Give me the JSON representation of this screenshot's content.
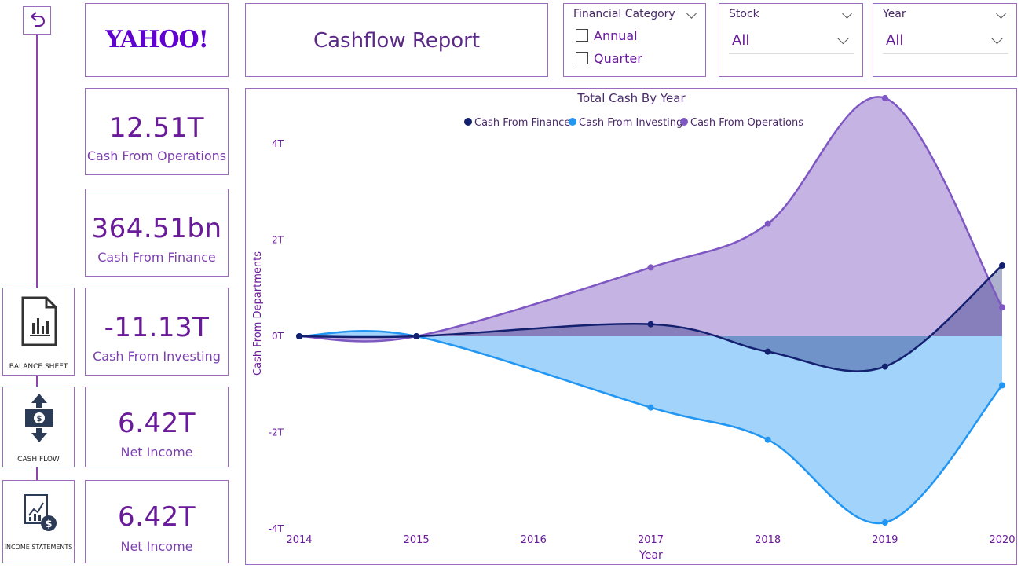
{
  "nav": {
    "back_icon": "back-arrow-icon",
    "items": [
      {
        "label": "BALANCE SHEET",
        "icon": "document-chart-icon"
      },
      {
        "label": "CASH FLOW",
        "icon": "cash-flow-arrows-icon"
      },
      {
        "label": "INCOME STATEMENTS",
        "icon": "income-statement-icon"
      }
    ]
  },
  "logo": {
    "text": "YAHOO!"
  },
  "title": "Cashflow Report",
  "slicers": {
    "financial_category": {
      "title": "Financial Category",
      "options": [
        "Annual",
        "Quarter"
      ]
    },
    "stock": {
      "title": "Stock",
      "selected": "All"
    },
    "year": {
      "title": "Year",
      "selected": "All"
    }
  },
  "kpis": [
    {
      "value": "12.51T",
      "label": "Cash From Operations"
    },
    {
      "value": "364.51bn",
      "label": "Cash From Finance"
    },
    {
      "value": "-11.13T",
      "label": "Cash From Investing"
    },
    {
      "value": "6.42T",
      "label": "Net Income"
    },
    {
      "value": "6.42T",
      "label": "Net Income"
    }
  ],
  "colors": {
    "finance": "#142070",
    "investing": "#2196f3",
    "operations": "#7e57c2",
    "accent": "#6a1b9a"
  },
  "chart_data": {
    "type": "area",
    "title": "Total Cash By Year",
    "xlabel": "Year",
    "ylabel": "Cash From Departments",
    "x": [
      2014,
      2015,
      2016,
      2017,
      2018,
      2019,
      2020
    ],
    "x_ticks": [
      "2014",
      "2015",
      "2016",
      "2017",
      "2018",
      "2019",
      "2020"
    ],
    "y_ticks": [
      "4T",
      "2T",
      "0T",
      "-2T",
      "-4T"
    ],
    "y_tick_values": [
      4,
      2,
      0,
      -2,
      -4
    ],
    "ylim": [
      -4,
      4
    ],
    "legend_position": "top-center",
    "series": [
      {
        "name": "Cash From Finance",
        "x": [
          2014,
          2015,
          2017,
          2018,
          2019,
          2020
        ],
        "values": [
          0,
          0,
          0.25,
          -0.32,
          -0.63,
          1.47
        ]
      },
      {
        "name": "Cash From Investing",
        "x": [
          2014,
          2015,
          2017,
          2018,
          2019,
          2020
        ],
        "values": [
          0,
          0,
          -1.48,
          -2.15,
          -3.87,
          -1.02
        ]
      },
      {
        "name": "Cash From Operations",
        "x": [
          2014,
          2015,
          2017,
          2018,
          2019,
          2020
        ],
        "values": [
          0,
          0,
          1.43,
          2.34,
          4.95,
          0.6
        ]
      }
    ]
  }
}
